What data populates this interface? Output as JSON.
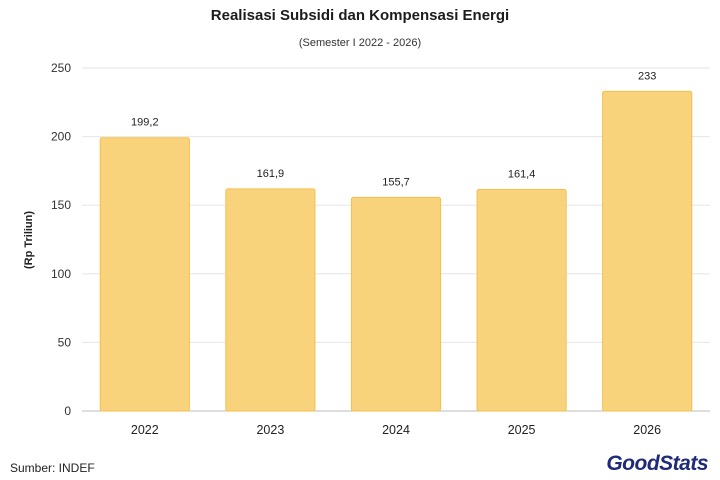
{
  "chart_data": {
    "type": "bar",
    "title": "Realisasi Subsidi dan Kompensasi Energi",
    "subtitle": "(Semester I 2022 - 2026)",
    "ylabel": "(Rp Triliun)",
    "xlabel": "",
    "categories": [
      "2022",
      "2023",
      "2024",
      "2025",
      "2026"
    ],
    "values": [
      199.2,
      161.9,
      155.7,
      161.4,
      233
    ],
    "value_labels": [
      "199,2",
      "161,9",
      "155,7",
      "161,4",
      "233"
    ],
    "ylim": [
      0,
      250
    ],
    "yticks": [
      "0",
      "50",
      "100",
      "150",
      "200",
      "250"
    ],
    "grid": true,
    "legend": "none",
    "bar_color": "#f9d27c",
    "bar_stroke": "#f3c04f"
  },
  "footer": {
    "source": "Sumber: INDEF",
    "brand": "GoodStats",
    "brand_color": "#1f2a78"
  }
}
